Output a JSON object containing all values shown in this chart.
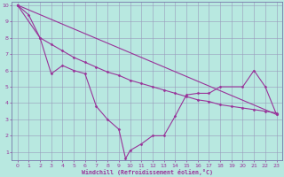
{
  "xlabel": "Windchill (Refroidissement éolien,°C)",
  "bg_color": "#b8e8e0",
  "grid_color": "#9999bb",
  "line_color": "#993399",
  "spine_color": "#7777aa",
  "ylim": [
    0.5,
    10.2
  ],
  "xlim": [
    -0.5,
    23.5
  ],
  "yticks": [
    1,
    2,
    3,
    4,
    5,
    6,
    7,
    8,
    9,
    10
  ],
  "xticks": [
    0,
    1,
    2,
    3,
    4,
    5,
    6,
    7,
    8,
    9,
    10,
    11,
    12,
    13,
    14,
    15,
    16,
    17,
    18,
    19,
    20,
    21,
    22,
    23
  ],
  "line1_x": [
    0,
    1,
    2,
    3,
    4,
    5,
    6,
    7,
    8,
    9,
    9.6,
    10,
    11,
    12,
    13,
    14,
    15,
    16,
    17,
    18,
    20,
    21,
    22,
    23
  ],
  "line1_y": [
    10,
    9.4,
    8.0,
    5.8,
    6.3,
    6.0,
    5.8,
    3.8,
    3.0,
    2.4,
    0.6,
    1.1,
    1.5,
    2.0,
    2.0,
    3.2,
    4.5,
    4.6,
    4.6,
    5.0,
    5.0,
    6.0,
    5.0,
    3.3
  ],
  "line2_x": [
    0,
    23
  ],
  "line2_y": [
    10.0,
    3.3
  ],
  "line3_x": [
    0,
    2,
    3,
    4,
    5,
    6,
    7,
    8,
    9,
    10,
    11,
    12,
    13,
    14,
    15,
    16,
    17,
    18,
    19,
    20,
    21,
    22,
    23
  ],
  "line3_y": [
    10.0,
    8.0,
    7.6,
    7.2,
    6.8,
    6.5,
    6.2,
    5.9,
    5.7,
    5.4,
    5.2,
    5.0,
    4.8,
    4.6,
    4.4,
    4.2,
    4.1,
    3.9,
    3.8,
    3.7,
    3.6,
    3.5,
    3.4
  ]
}
